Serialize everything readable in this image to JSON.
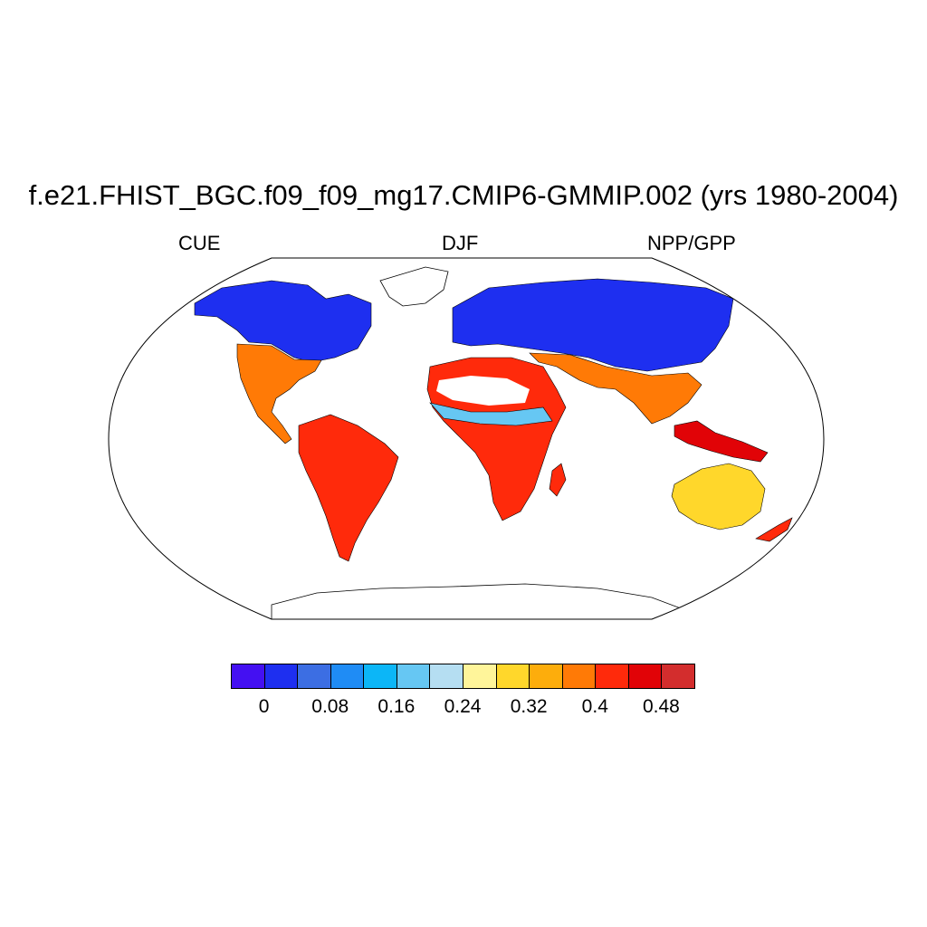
{
  "title": "f.e21.FHIST_BGC.f09_f09_mg17.CMIP6-GMMIP.002 (yrs 1980-2004)",
  "subtitle_left": "CUE",
  "subtitle_center": "DJF",
  "subtitle_right": "NPP/GPP",
  "colorbar": {
    "colors": [
      "#4410f2",
      "#1e2ff0",
      "#3c6ee3",
      "#1f8cf5",
      "#0cb6f7",
      "#66c7f3",
      "#b5def2",
      "#fff59a",
      "#ffd72b",
      "#fdad0c",
      "#ff7a06",
      "#ff2a0b",
      "#e10307",
      "#d32d2d"
    ],
    "tick_labels": [
      "0",
      "0.08",
      "0.16",
      "0.24",
      "0.32",
      "0.4",
      "0.48"
    ]
  },
  "map": {
    "projection": "Robinson",
    "land_no_data_color": "#ffffff",
    "regions": {
      "north_america_boreal": "#1e2ff0",
      "north_america_south": "#ff7a06",
      "south_america": "#ff2a0b",
      "eurasia_boreal": "#1e2ff0",
      "africa": "#ff2a0b",
      "sahara_fringe": "#66c7f3",
      "south_asia": "#ff7a06",
      "southeast_asia": "#e10307",
      "australia": "#ffd72b",
      "new_zealand": "#ff2a0b"
    }
  }
}
